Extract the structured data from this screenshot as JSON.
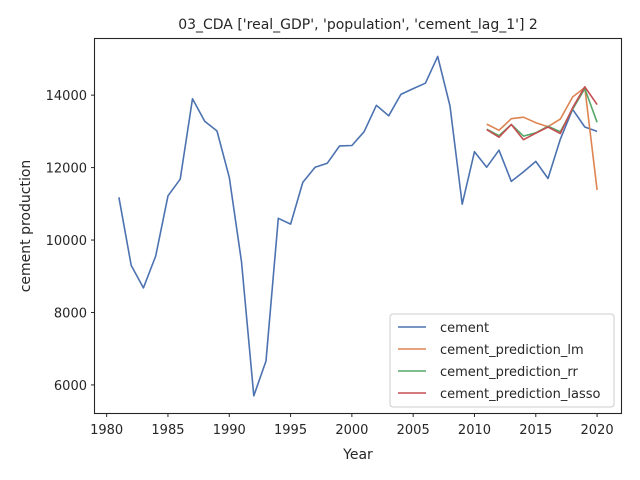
{
  "chart_data": {
    "type": "line",
    "title": "03_CDA ['real_GDP', 'population', 'cement_lag_1'] 2",
    "xlabel": "Year",
    "ylabel": "cement production",
    "xlim": [
      1979.05,
      2021.95
    ],
    "ylim": [
      5225,
      15550
    ],
    "xticks": [
      1980,
      1985,
      1990,
      1995,
      2000,
      2005,
      2010,
      2015,
      2020
    ],
    "yticks": [
      6000,
      8000,
      10000,
      12000,
      14000
    ],
    "legend_position": "lower right",
    "grid": false,
    "series": [
      {
        "name": "cement",
        "color": "#4c72b0",
        "x": [
          1981,
          1982,
          1983,
          1984,
          1985,
          1986,
          1987,
          1988,
          1989,
          1990,
          1991,
          1992,
          1993,
          1994,
          1995,
          1996,
          1997,
          1998,
          1999,
          2000,
          2001,
          2002,
          2003,
          2004,
          2005,
          2006,
          2007,
          2008,
          2009,
          2010,
          2011,
          2012,
          2013,
          2014,
          2015,
          2016,
          2017,
          2018,
          2019,
          2020
        ],
        "y": [
          11180,
          9300,
          8680,
          9560,
          11220,
          11680,
          13900,
          13280,
          13010,
          11730,
          9400,
          5700,
          6660,
          10600,
          10440,
          11590,
          12010,
          12120,
          12600,
          12610,
          12990,
          13720,
          13430,
          14020,
          14180,
          14330,
          15070,
          13700,
          10990,
          12440,
          12010,
          12480,
          11620,
          11880,
          12170,
          11700,
          12780,
          13610,
          13120,
          13000
        ]
      },
      {
        "name": "cement_prediction_lm",
        "color": "#dd8452",
        "x": [
          2011,
          2012,
          2013,
          2014,
          2015,
          2016,
          2017,
          2018,
          2019,
          2020
        ],
        "y": [
          13200,
          13030,
          13350,
          13390,
          13240,
          13130,
          13340,
          13950,
          14210,
          11380
        ]
      },
      {
        "name": "cement_prediction_rr",
        "color": "#55a868",
        "x": [
          2011,
          2012,
          2013,
          2014,
          2015,
          2016,
          2017,
          2018,
          2019,
          2020
        ],
        "y": [
          13060,
          12880,
          13190,
          12870,
          12960,
          13140,
          12990,
          13610,
          14180,
          13250
        ]
      },
      {
        "name": "cement_prediction_lasso",
        "color": "#c44e52",
        "x": [
          2011,
          2012,
          2013,
          2014,
          2015,
          2016,
          2017,
          2018,
          2019,
          2020
        ],
        "y": [
          13050,
          12840,
          13190,
          12770,
          12950,
          13120,
          12940,
          13650,
          14230,
          13740
        ]
      }
    ]
  }
}
